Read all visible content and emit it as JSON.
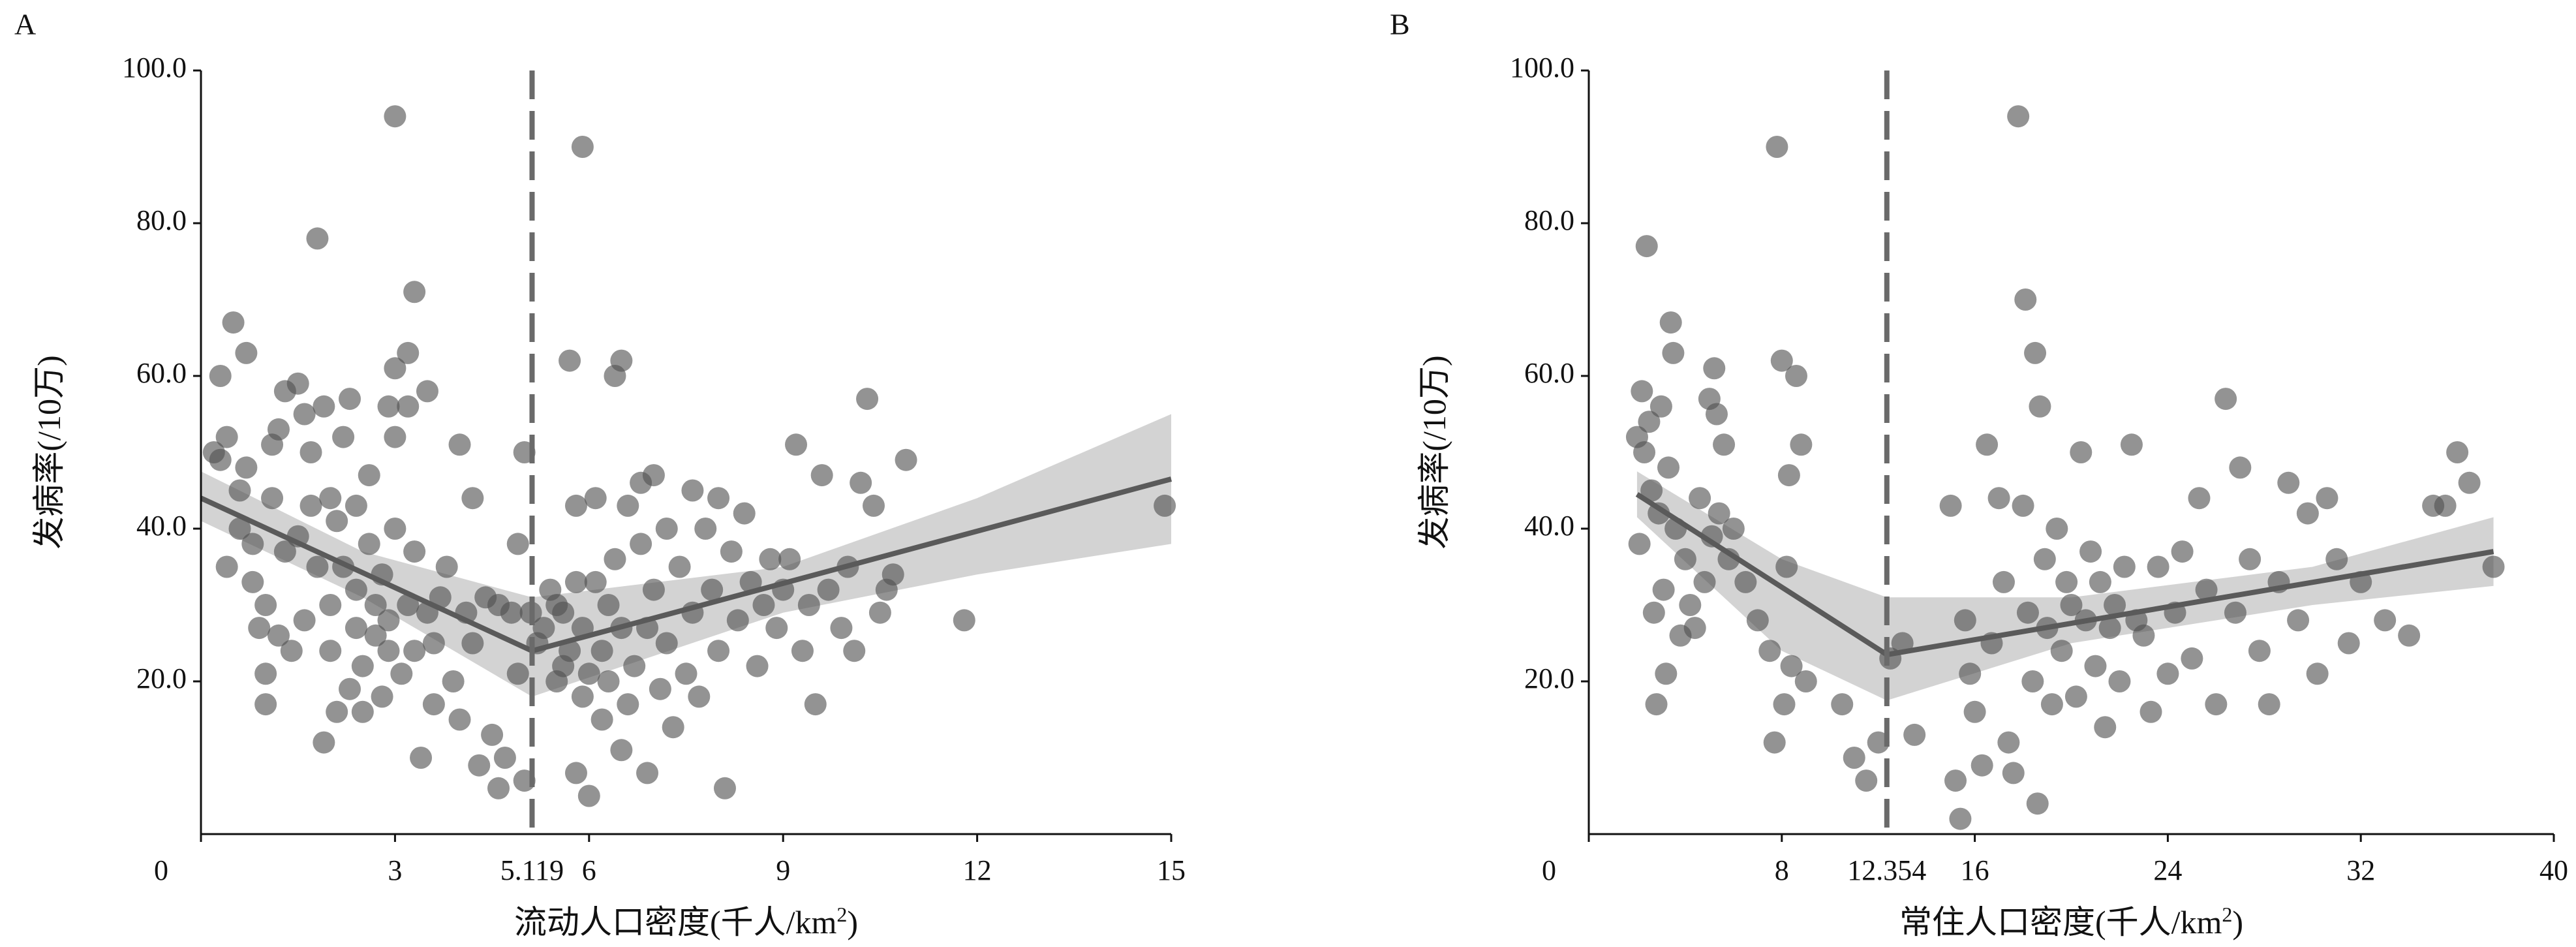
{
  "chart_data": [
    {
      "type": "scatter",
      "panel_label": "A",
      "xlabel": "流动人口密度(千人/km",
      "xlabel_sup": "2",
      "xlabel_close": ")",
      "ylabel": "发病率(/10万)",
      "xlim": [
        0,
        15
      ],
      "ylim": [
        0,
        100
      ],
      "xticks": [
        0,
        3,
        6,
        9,
        12,
        15
      ],
      "yticks": [
        20,
        40,
        60,
        80,
        100
      ],
      "ytick_labels": [
        "20.0",
        "40.0",
        "60.0",
        "80.0",
        "100.0"
      ],
      "breakpoint": 5.119,
      "breakpoint_label": "5.119",
      "fit": {
        "line": [
          [
            0.0,
            44.0
          ],
          [
            5.119,
            24.0
          ],
          [
            15.0,
            46.5
          ]
        ],
        "ci_upper": [
          [
            0.0,
            47.5
          ],
          [
            2.5,
            37.0
          ],
          [
            5.119,
            31.0
          ],
          [
            9.0,
            35.0
          ],
          [
            12.0,
            44.0
          ],
          [
            15.0,
            55.0
          ]
        ],
        "ci_lower": [
          [
            0.0,
            41.0
          ],
          [
            2.5,
            31.0
          ],
          [
            5.119,
            18.0
          ],
          [
            9.0,
            29.0
          ],
          [
            12.0,
            34.0
          ],
          [
            15.0,
            38.0
          ]
        ]
      },
      "points": [
        [
          0.2,
          50
        ],
        [
          0.3,
          49
        ],
        [
          0.3,
          60
        ],
        [
          0.4,
          35
        ],
        [
          0.4,
          52
        ],
        [
          0.5,
          67
        ],
        [
          0.6,
          45
        ],
        [
          0.6,
          40
        ],
        [
          0.7,
          63
        ],
        [
          0.7,
          48
        ],
        [
          0.8,
          33
        ],
        [
          0.8,
          38
        ],
        [
          0.9,
          27
        ],
        [
          1.0,
          30
        ],
        [
          1.0,
          21
        ],
        [
          1.0,
          17
        ],
        [
          1.1,
          51
        ],
        [
          1.1,
          44
        ],
        [
          1.2,
          26
        ],
        [
          1.2,
          53
        ],
        [
          1.3,
          58
        ],
        [
          1.3,
          37
        ],
        [
          1.4,
          24
        ],
        [
          1.5,
          39
        ],
        [
          1.5,
          59
        ],
        [
          1.6,
          55
        ],
        [
          1.6,
          28
        ],
        [
          1.7,
          43
        ],
        [
          1.7,
          50
        ],
        [
          1.8,
          78
        ],
        [
          1.8,
          35
        ],
        [
          1.9,
          12
        ],
        [
          1.9,
          56
        ],
        [
          2.0,
          24
        ],
        [
          2.0,
          30
        ],
        [
          2.0,
          44
        ],
        [
          2.1,
          16
        ],
        [
          2.1,
          41
        ],
        [
          2.2,
          35
        ],
        [
          2.2,
          52
        ],
        [
          2.3,
          19
        ],
        [
          2.3,
          57
        ],
        [
          2.4,
          27
        ],
        [
          2.4,
          32
        ],
        [
          2.4,
          43
        ],
        [
          2.5,
          16
        ],
        [
          2.5,
          22
        ],
        [
          2.6,
          47
        ],
        [
          2.6,
          38
        ],
        [
          2.7,
          26
        ],
        [
          2.7,
          30
        ],
        [
          2.8,
          18
        ],
        [
          2.8,
          34
        ],
        [
          2.9,
          56
        ],
        [
          2.9,
          24
        ],
        [
          2.9,
          28
        ],
        [
          3.0,
          94
        ],
        [
          3.0,
          52
        ],
        [
          3.0,
          61
        ],
        [
          3.0,
          40
        ],
        [
          3.1,
          21
        ],
        [
          3.2,
          56
        ],
        [
          3.2,
          30
        ],
        [
          3.2,
          63
        ],
        [
          3.3,
          71
        ],
        [
          3.3,
          37
        ],
        [
          3.3,
          24
        ],
        [
          3.4,
          10
        ],
        [
          3.5,
          58
        ],
        [
          3.5,
          29
        ],
        [
          3.6,
          25
        ],
        [
          3.6,
          17
        ],
        [
          3.7,
          31
        ],
        [
          3.8,
          35
        ],
        [
          3.9,
          20
        ],
        [
          4.0,
          15
        ],
        [
          4.0,
          51
        ],
        [
          4.1,
          29
        ],
        [
          4.2,
          44
        ],
        [
          4.2,
          25
        ],
        [
          4.3,
          9
        ],
        [
          4.4,
          31
        ],
        [
          4.5,
          13
        ],
        [
          4.6,
          6
        ],
        [
          4.6,
          30
        ],
        [
          4.7,
          10
        ],
        [
          4.8,
          29
        ],
        [
          4.9,
          21
        ],
        [
          4.9,
          38
        ],
        [
          5.0,
          50
        ],
        [
          5.0,
          7
        ],
        [
          5.1,
          29
        ],
        [
          5.2,
          25
        ],
        [
          5.3,
          27
        ],
        [
          5.4,
          32
        ],
        [
          5.5,
          20
        ],
        [
          5.5,
          30
        ],
        [
          5.6,
          22
        ],
        [
          5.6,
          29
        ],
        [
          5.7,
          62
        ],
        [
          5.7,
          24
        ],
        [
          5.8,
          43
        ],
        [
          5.8,
          33
        ],
        [
          5.8,
          8
        ],
        [
          5.9,
          90
        ],
        [
          5.9,
          18
        ],
        [
          5.9,
          27
        ],
        [
          6.0,
          5
        ],
        [
          6.0,
          21
        ],
        [
          6.1,
          44
        ],
        [
          6.1,
          33
        ],
        [
          6.2,
          15
        ],
        [
          6.2,
          24
        ],
        [
          6.3,
          30
        ],
        [
          6.3,
          20
        ],
        [
          6.4,
          60
        ],
        [
          6.4,
          36
        ],
        [
          6.5,
          62
        ],
        [
          6.5,
          11
        ],
        [
          6.5,
          27
        ],
        [
          6.6,
          43
        ],
        [
          6.6,
          17
        ],
        [
          6.7,
          22
        ],
        [
          6.8,
          46
        ],
        [
          6.8,
          38
        ],
        [
          6.9,
          8
        ],
        [
          6.9,
          27
        ],
        [
          7.0,
          47
        ],
        [
          7.0,
          32
        ],
        [
          7.1,
          19
        ],
        [
          7.2,
          40
        ],
        [
          7.2,
          25
        ],
        [
          7.3,
          14
        ],
        [
          7.4,
          35
        ],
        [
          7.5,
          21
        ],
        [
          7.6,
          45
        ],
        [
          7.6,
          29
        ],
        [
          7.7,
          18
        ],
        [
          7.8,
          40
        ],
        [
          7.9,
          32
        ],
        [
          8.0,
          44
        ],
        [
          8.0,
          24
        ],
        [
          8.1,
          6
        ],
        [
          8.2,
          37
        ],
        [
          8.3,
          28
        ],
        [
          8.4,
          42
        ],
        [
          8.5,
          33
        ],
        [
          8.6,
          22
        ],
        [
          8.7,
          30
        ],
        [
          8.8,
          36
        ],
        [
          8.9,
          27
        ],
        [
          9.0,
          32
        ],
        [
          9.1,
          36
        ],
        [
          9.2,
          51
        ],
        [
          9.3,
          24
        ],
        [
          9.4,
          30
        ],
        [
          9.5,
          17
        ],
        [
          9.6,
          47
        ],
        [
          9.7,
          32
        ],
        [
          9.9,
          27
        ],
        [
          10.0,
          35
        ],
        [
          10.1,
          24
        ],
        [
          10.2,
          46
        ],
        [
          10.3,
          57
        ],
        [
          10.4,
          43
        ],
        [
          10.5,
          29
        ],
        [
          10.6,
          32
        ],
        [
          10.7,
          34
        ],
        [
          10.9,
          49
        ],
        [
          11.8,
          28
        ],
        [
          14.9,
          43
        ]
      ]
    },
    {
      "type": "scatter",
      "panel_label": "B",
      "xlabel": "常住人口密度(千人/km",
      "xlabel_sup": "2",
      "xlabel_close": ")",
      "ylabel": "发病率(/10万)",
      "xlim": [
        0,
        40
      ],
      "ylim": [
        0,
        100
      ],
      "xticks": [
        0,
        8,
        16,
        24,
        32,
        40
      ],
      "yticks": [
        20,
        40,
        60,
        80,
        100
      ],
      "ytick_labels": [
        "20.0",
        "40.0",
        "60.0",
        "80.0",
        "100.0"
      ],
      "breakpoint": 12.354,
      "breakpoint_label": "12.354",
      "fit": {
        "line": [
          [
            2.0,
            44.5
          ],
          [
            12.354,
            23.5
          ],
          [
            37.5,
            37.0
          ]
        ],
        "ci_upper": [
          [
            2.0,
            47.5
          ],
          [
            8.0,
            36.0
          ],
          [
            12.354,
            31.0
          ],
          [
            20.0,
            31.0
          ],
          [
            30.0,
            35.0
          ],
          [
            37.5,
            41.5
          ]
        ],
        "ci_lower": [
          [
            2.0,
            41.5
          ],
          [
            8.0,
            24.0
          ],
          [
            12.354,
            17.5
          ],
          [
            20.0,
            25.0
          ],
          [
            30.0,
            30.0
          ],
          [
            37.5,
            32.5
          ]
        ]
      },
      "points": [
        [
          2.0,
          52
        ],
        [
          2.1,
          38
        ],
        [
          2.2,
          58
        ],
        [
          2.3,
          50
        ],
        [
          2.4,
          77
        ],
        [
          2.5,
          54
        ],
        [
          2.6,
          45
        ],
        [
          2.7,
          29
        ],
        [
          2.8,
          17
        ],
        [
          2.9,
          42
        ],
        [
          3.0,
          56
        ],
        [
          3.1,
          32
        ],
        [
          3.2,
          21
        ],
        [
          3.3,
          48
        ],
        [
          3.4,
          67
        ],
        [
          3.5,
          63
        ],
        [
          3.6,
          40
        ],
        [
          3.8,
          26
        ],
        [
          4.0,
          36
        ],
        [
          4.2,
          30
        ],
        [
          4.4,
          27
        ],
        [
          4.6,
          44
        ],
        [
          4.8,
          33
        ],
        [
          5.0,
          57
        ],
        [
          5.1,
          39
        ],
        [
          5.2,
          61
        ],
        [
          5.3,
          55
        ],
        [
          5.4,
          42
        ],
        [
          5.6,
          51
        ],
        [
          5.8,
          36
        ],
        [
          6.0,
          40
        ],
        [
          6.5,
          33
        ],
        [
          7.0,
          28
        ],
        [
          7.5,
          24
        ],
        [
          7.7,
          12
        ],
        [
          7.8,
          90
        ],
        [
          8.0,
          62
        ],
        [
          8.1,
          17
        ],
        [
          8.2,
          35
        ],
        [
          8.3,
          47
        ],
        [
          8.4,
          22
        ],
        [
          8.6,
          60
        ],
        [
          8.8,
          51
        ],
        [
          9.0,
          20
        ],
        [
          10.5,
          17
        ],
        [
          11.0,
          10
        ],
        [
          11.5,
          7
        ],
        [
          12.0,
          12
        ],
        [
          12.5,
          23
        ],
        [
          13.0,
          25
        ],
        [
          13.5,
          13
        ],
        [
          15.0,
          43
        ],
        [
          15.2,
          7
        ],
        [
          15.4,
          2
        ],
        [
          15.6,
          28
        ],
        [
          15.8,
          21
        ],
        [
          16.0,
          16
        ],
        [
          16.3,
          9
        ],
        [
          16.5,
          51
        ],
        [
          16.7,
          25
        ],
        [
          17.0,
          44
        ],
        [
          17.2,
          33
        ],
        [
          17.4,
          12
        ],
        [
          17.6,
          8
        ],
        [
          17.8,
          94
        ],
        [
          18.0,
          43
        ],
        [
          18.1,
          70
        ],
        [
          18.2,
          29
        ],
        [
          18.4,
          20
        ],
        [
          18.5,
          63
        ],
        [
          18.6,
          4
        ],
        [
          18.7,
          56
        ],
        [
          18.9,
          36
        ],
        [
          19.0,
          27
        ],
        [
          19.2,
          17
        ],
        [
          19.4,
          40
        ],
        [
          19.6,
          24
        ],
        [
          19.8,
          33
        ],
        [
          20.0,
          30
        ],
        [
          20.2,
          18
        ],
        [
          20.4,
          50
        ],
        [
          20.6,
          28
        ],
        [
          20.8,
          37
        ],
        [
          21.0,
          22
        ],
        [
          21.2,
          33
        ],
        [
          21.4,
          14
        ],
        [
          21.6,
          27
        ],
        [
          21.8,
          30
        ],
        [
          22.0,
          20
        ],
        [
          22.2,
          35
        ],
        [
          22.5,
          51
        ],
        [
          22.7,
          28
        ],
        [
          23.0,
          26
        ],
        [
          23.3,
          16
        ],
        [
          23.6,
          35
        ],
        [
          24.0,
          21
        ],
        [
          24.3,
          29
        ],
        [
          24.6,
          37
        ],
        [
          25.0,
          23
        ],
        [
          25.3,
          44
        ],
        [
          25.6,
          32
        ],
        [
          26.0,
          17
        ],
        [
          26.4,
          57
        ],
        [
          26.8,
          29
        ],
        [
          27.0,
          48
        ],
        [
          27.4,
          36
        ],
        [
          27.8,
          24
        ],
        [
          28.2,
          17
        ],
        [
          28.6,
          33
        ],
        [
          29.0,
          46
        ],
        [
          29.4,
          28
        ],
        [
          29.8,
          42
        ],
        [
          30.2,
          21
        ],
        [
          30.6,
          44
        ],
        [
          31.0,
          36
        ],
        [
          31.5,
          25
        ],
        [
          32.0,
          33
        ],
        [
          33.0,
          28
        ],
        [
          34.0,
          26
        ],
        [
          35.0,
          43
        ],
        [
          35.5,
          43
        ],
        [
          36.0,
          50
        ],
        [
          36.5,
          46
        ],
        [
          37.5,
          35
        ]
      ]
    }
  ]
}
